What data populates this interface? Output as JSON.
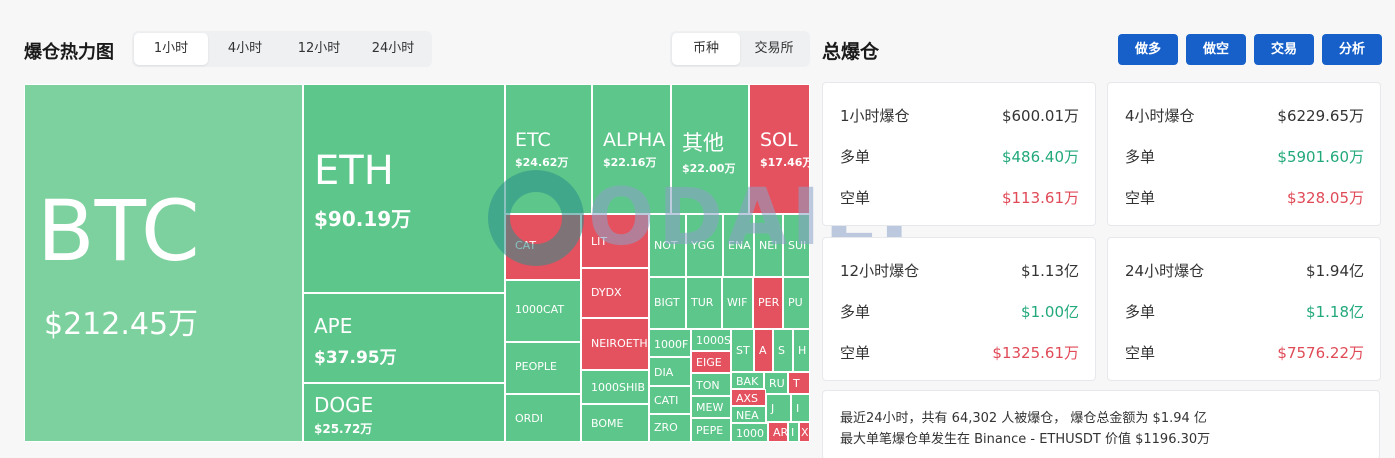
{
  "heatmap": {
    "title": "爆仓热力图",
    "time_tabs": [
      "1小时",
      "4小时",
      "12小时",
      "24小时"
    ],
    "type_tabs": [
      "币种",
      "交易所"
    ],
    "tiles": [
      {
        "sym": "BTC",
        "amt": "$212.45万"
      },
      {
        "sym": "ETH",
        "amt": "$90.19万"
      },
      {
        "sym": "APE",
        "amt": "$37.95万"
      },
      {
        "sym": "DOGE",
        "amt": "$25.72万"
      },
      {
        "sym": "ETC",
        "amt": "$24.62万"
      },
      {
        "sym": "ALPHA",
        "amt": "$22.16万"
      },
      {
        "sym": "其他",
        "amt": "$22.00万"
      },
      {
        "sym": "SOL",
        "amt": "$17.46万"
      },
      {
        "sym": "CAT"
      },
      {
        "sym": "LIT"
      },
      {
        "sym": "NOT"
      },
      {
        "sym": "YGG"
      },
      {
        "sym": "ENA"
      },
      {
        "sym": "NEI"
      },
      {
        "sym": "SUI"
      },
      {
        "sym": "DYDX"
      },
      {
        "sym": "BIGT"
      },
      {
        "sym": "TUR"
      },
      {
        "sym": "WIF"
      },
      {
        "sym": "PER"
      },
      {
        "sym": "PU"
      },
      {
        "sym": "1000CAT"
      },
      {
        "sym": "NEIROETH"
      },
      {
        "sym": "1000F"
      },
      {
        "sym": "1000S"
      },
      {
        "sym": "EIGE"
      },
      {
        "sym": "ST"
      },
      {
        "sym": "A"
      },
      {
        "sym": "S"
      },
      {
        "sym": "H"
      },
      {
        "sym": "PEOPLE"
      },
      {
        "sym": "DIA"
      },
      {
        "sym": "TON"
      },
      {
        "sym": "BAK"
      },
      {
        "sym": "RU"
      },
      {
        "sym": "T"
      },
      {
        "sym": "1000SHIB"
      },
      {
        "sym": "CATI"
      },
      {
        "sym": "MEW"
      },
      {
        "sym": "AXS"
      },
      {
        "sym": "NEA"
      },
      {
        "sym": "J"
      },
      {
        "sym": "I"
      },
      {
        "sym": "ORDI"
      },
      {
        "sym": "BOME"
      },
      {
        "sym": "ZRO"
      },
      {
        "sym": "PEPE"
      },
      {
        "sym": "1000"
      },
      {
        "sym": "AR"
      },
      {
        "sym": "I"
      },
      {
        "sym": "X"
      }
    ]
  },
  "summary": {
    "title": "总爆仓",
    "buttons": [
      "做多",
      "做空",
      "交易",
      "分析"
    ],
    "cards": [
      {
        "label": "1小时爆仓",
        "total": "$600.01万",
        "long_label": "多单",
        "long": "$486.40万",
        "short_label": "空单",
        "short": "$113.61万"
      },
      {
        "label": "4小时爆仓",
        "total": "$6229.65万",
        "long_label": "多单",
        "long": "$5901.60万",
        "short_label": "空单",
        "short": "$328.05万"
      },
      {
        "label": "12小时爆仓",
        "total": "$1.13亿",
        "long_label": "多单",
        "long": "$1.00亿",
        "short_label": "空单",
        "short": "$1325.61万"
      },
      {
        "label": "24小时爆仓",
        "total": "$1.94亿",
        "long_label": "多单",
        "long": "$1.18亿",
        "short_label": "空单",
        "short": "$7576.22万"
      }
    ],
    "note_line1": "最近24小时，共有 64,302 人被爆仓， 爆仓总金额为 $1.94 亿",
    "note_line2": "最大单笔爆仓单发生在 Binance - ETHUSDT 价值 $1196.30万"
  },
  "watermark": "ODAILY",
  "colors": {
    "long_green": "#5dc68a",
    "short_red": "#e4525f",
    "accent_blue": "#1760c9"
  }
}
